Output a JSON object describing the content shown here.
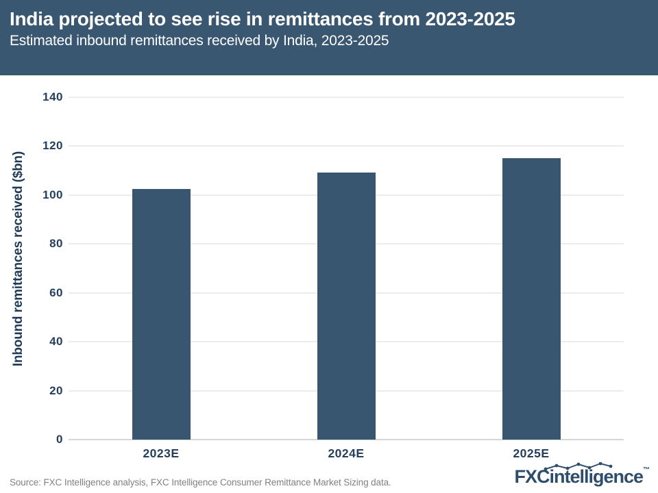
{
  "header": {
    "title": "India projected to see rise in remittances from 2023-2025",
    "subtitle": "Estimated inbound remittances received by India, 2023-2025"
  },
  "chart_data": {
    "type": "bar",
    "title": "India projected to see rise in remittances from 2023-2025",
    "subtitle": "Estimated inbound remittances received by India, 2023-2025",
    "categories": [
      "2023E",
      "2024E",
      "2025E"
    ],
    "values": [
      102.5,
      109,
      115
    ],
    "xlabel": "",
    "ylabel": "Inbound remittances received ($bn)",
    "ylim": [
      0,
      140
    ],
    "yticks": [
      0,
      20,
      40,
      60,
      80,
      100,
      120,
      140
    ],
    "grid": true,
    "legend": "none",
    "bar_color": "#395671"
  },
  "footer": {
    "source": "Source: FXC Intelligence analysis, FXC Intelligence Consumer Remittance Market Sizing data.",
    "logo_text": "FXCintelligence",
    "logo_trademark": "™"
  },
  "colors": {
    "header_background": "#3A5771",
    "header_text": "#FFFFFF",
    "bar": "#395671",
    "axis_text": "#24405C",
    "gridline": "#ECECEC",
    "baseline": "#D6D6D6",
    "source_text": "#808080",
    "logo": "#2E4D6B"
  }
}
